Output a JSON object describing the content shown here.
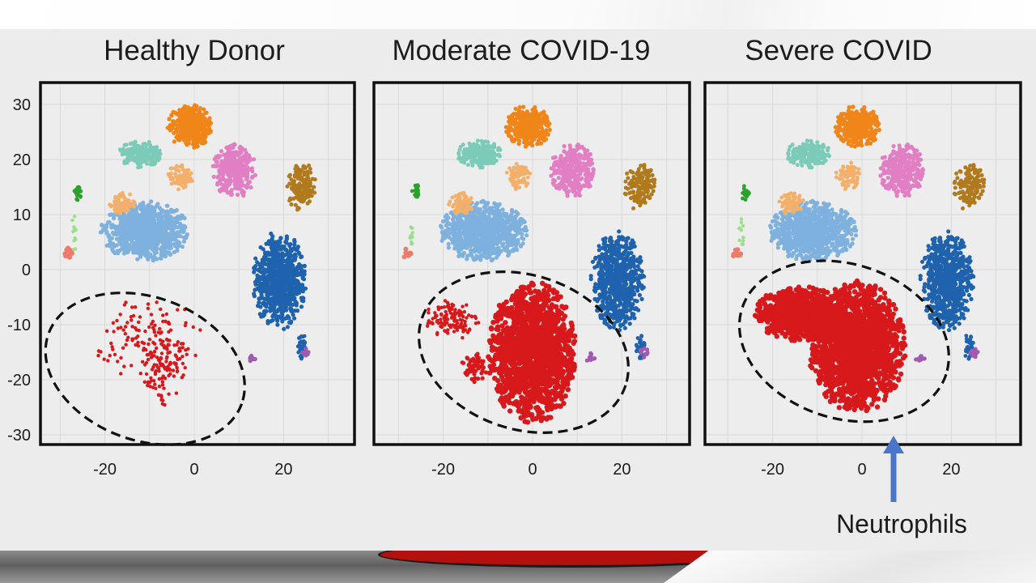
{
  "chart_data": [
    {
      "type": "scatter",
      "title": "Healthy Donor",
      "x_ticks": [
        -20,
        0,
        20
      ],
      "y_ticks": [
        30,
        20,
        10,
        0,
        -10,
        -20,
        -30
      ],
      "xlim": [
        -35,
        35
      ],
      "ylim": [
        -32,
        34
      ],
      "grid": true,
      "neutrophil_density": "sparse"
    },
    {
      "type": "scatter",
      "title": "Moderate COVID-19",
      "x_ticks": [
        -20,
        0,
        20
      ],
      "xlim": [
        -35,
        35
      ],
      "ylim": [
        -32,
        34
      ],
      "grid": true,
      "neutrophil_density": "dense"
    },
    {
      "type": "scatter",
      "title": "Severe COVID",
      "x_ticks": [
        -20,
        0,
        20
      ],
      "xlim": [
        -35,
        35
      ],
      "ylim": [
        -32,
        34
      ],
      "grid": true,
      "neutrophil_density": "very dense",
      "annotation": "Neutrophils"
    }
  ],
  "colors": {
    "neutrophils": "#d7191c",
    "light_blue": "#7fb1de",
    "dark_blue": "#1f62ad",
    "orange": "#f08519",
    "light_orange": "#f4b06b",
    "teal": "#7ccbb8",
    "pink": "#e27fc4",
    "brown": "#b07a1d",
    "green": "#2ca02c",
    "light_green": "#9cdf8a",
    "salmon": "#f07a6a",
    "purple": "#a05bb0",
    "arrow": "#4a76c7",
    "ellipse": "#111111"
  }
}
